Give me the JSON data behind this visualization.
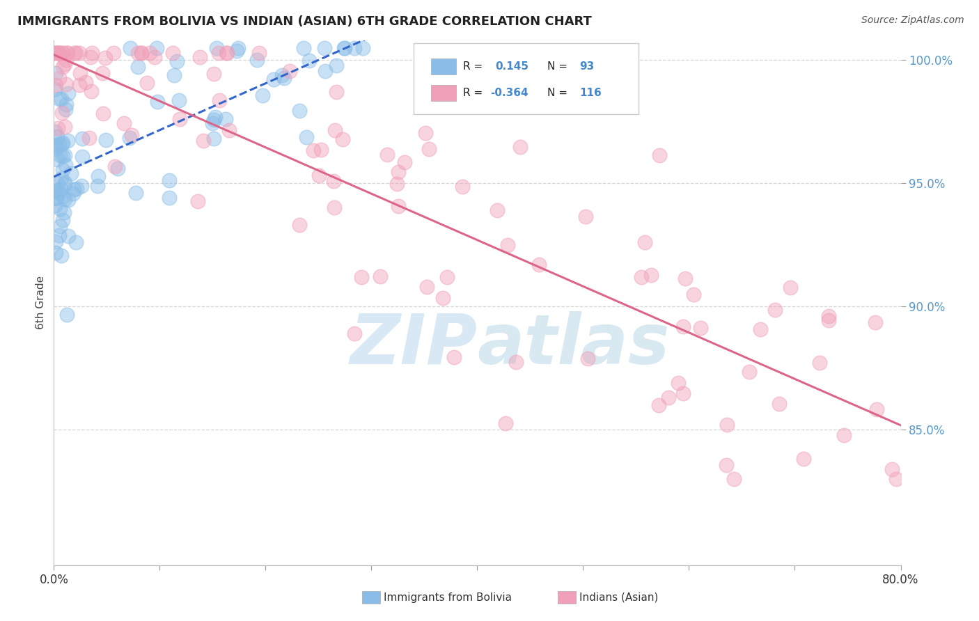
{
  "title": "IMMIGRANTS FROM BOLIVIA VS INDIAN (ASIAN) 6TH GRADE CORRELATION CHART",
  "source": "Source: ZipAtlas.com",
  "ylabel": "6th Grade",
  "xlim": [
    0.0,
    0.8
  ],
  "ylim": [
    0.795,
    1.008
  ],
  "yticks": [
    0.85,
    0.9,
    0.95,
    1.0
  ],
  "ytick_labels": [
    "85.0%",
    "90.0%",
    "95.0%",
    "100.0%"
  ],
  "xticks": [
    0.0,
    0.1,
    0.2,
    0.3,
    0.4,
    0.5,
    0.6,
    0.7,
    0.8
  ],
  "legend_r1": "R =",
  "legend_v1": "0.145",
  "legend_n1_label": "N =",
  "legend_n1": "93",
  "legend_r2": "R =",
  "legend_v2": "-0.364",
  "legend_n2_label": "N =",
  "legend_n2": "116",
  "color_blue": "#89bde8",
  "color_pink": "#f0a0b8",
  "trendline_blue": "#3366cc",
  "trendline_pink": "#dd6688",
  "grid_color": "#cccccc",
  "background": "#ffffff",
  "watermark_color": "#c8dff0",
  "seed_blue": 12345,
  "seed_pink": 67890,
  "n_blue": 93,
  "n_pink": 116
}
